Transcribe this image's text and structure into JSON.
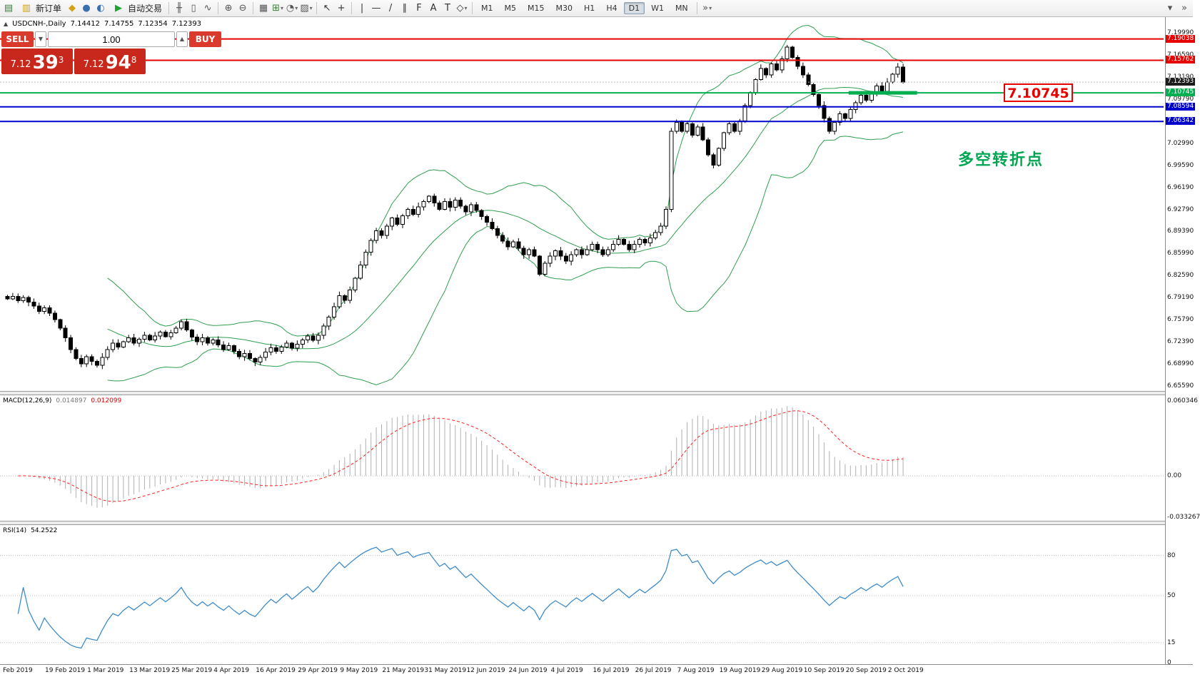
{
  "colors": {
    "bull": "#ffffff",
    "bear": "#000000",
    "outline": "#000000",
    "bollinger": "#2f9e4f",
    "macd_hist": "#b0b0b0",
    "macd_signal": "#ff2020",
    "rsi_line": "#3f8cc9",
    "red_level": "#e60000",
    "green_level": "#00b050",
    "blue_level": "#0000cc",
    "current_tag": "#1c1c1c",
    "sell_button": "#d93a2b",
    "price_panel": "#c8271c",
    "annotation": "#00a651",
    "callout": "#e60000"
  },
  "toolbar": {
    "items": [
      {
        "type": "icon",
        "name": "new-chart-icon",
        "glyph": "▤",
        "color": "#3e7d3e"
      },
      {
        "type": "button",
        "name": "new-order-button",
        "glyph": "▥",
        "glyph_color": "#c9a227",
        "label": "新订单"
      },
      {
        "type": "icon",
        "name": "profiles-icon",
        "glyph": "◆",
        "color": "#d4a017"
      },
      {
        "type": "icon",
        "name": "market-watch-icon",
        "glyph": "●",
        "color": "#3a6fb0"
      },
      {
        "type": "icon",
        "name": "navigator-icon",
        "glyph": "◐",
        "color": "#3a6fb0"
      },
      {
        "type": "button",
        "name": "autotrading-button",
        "glyph": "▶",
        "glyph_color": "#1da332",
        "label": "自动交易"
      },
      {
        "type": "sep"
      },
      {
        "type": "icon",
        "name": "bar-chart-icon",
        "glyph": "╫",
        "color": "#555555"
      },
      {
        "type": "icon",
        "name": "candlestick-icon",
        "glyph": "▯",
        "color": "#555555"
      },
      {
        "type": "icon",
        "name": "line-chart-icon",
        "glyph": "∿",
        "color": "#555555"
      },
      {
        "type": "sep"
      },
      {
        "type": "icon",
        "name": "zoom-in-icon",
        "glyph": "⊕",
        "color": "#555555"
      },
      {
        "type": "icon",
        "name": "zoom-out-icon",
        "glyph": "⊖",
        "color": "#555555"
      },
      {
        "type": "sep"
      },
      {
        "type": "icon",
        "name": "tile-windows-icon",
        "glyph": "▦",
        "color": "#555555"
      },
      {
        "type": "dropdown",
        "name": "new-chart-dropdown",
        "glyph": "⊞",
        "color": "#3e7d3e"
      },
      {
        "type": "dropdown",
        "name": "period-dropdown",
        "glyph": "◔",
        "color": "#555555"
      },
      {
        "type": "dropdown",
        "name": "template-dropdown",
        "glyph": "▨",
        "color": "#555555"
      },
      {
        "type": "sep"
      },
      {
        "type": "icon",
        "name": "cursor-icon",
        "glyph": "↖",
        "color": "#333333"
      },
      {
        "type": "icon",
        "name": "crosshair-icon",
        "glyph": "+",
        "color": "#333333"
      },
      {
        "type": "sep"
      },
      {
        "type": "icon",
        "name": "vertical-line-icon",
        "glyph": "|",
        "color": "#333333"
      },
      {
        "type": "icon",
        "name": "horizontal-line-icon",
        "glyph": "—",
        "color": "#333333"
      },
      {
        "type": "icon",
        "name": "trendline-icon",
        "glyph": "/",
        "color": "#333333"
      },
      {
        "type": "icon",
        "name": "channel-icon",
        "glyph": "∥",
        "color": "#333333"
      },
      {
        "type": "icon",
        "name": "fibonacci-icon",
        "glyph": "F",
        "color": "#333333"
      },
      {
        "type": "icon",
        "name": "text-icon",
        "glyph": "A",
        "color": "#333333"
      },
      {
        "type": "icon",
        "name": "text-label-icon",
        "glyph": "T",
        "color": "#333333"
      },
      {
        "type": "dropdown",
        "name": "arrows-dropdown",
        "glyph": "◇",
        "color": "#333333"
      },
      {
        "type": "sep"
      },
      {
        "type": "timeframes"
      },
      {
        "type": "sep"
      },
      {
        "type": "dropdown",
        "name": "chart-shift-dropdown",
        "glyph": "»",
        "color": "#555555"
      },
      {
        "type": "spacer"
      },
      {
        "type": "icon",
        "name": "toolbar-customize-icon",
        "glyph": "▾",
        "color": "#555555"
      },
      {
        "type": "icon",
        "name": "toolbar-overflow-icon",
        "glyph": "»",
        "color": "#555555"
      }
    ],
    "timeframes": [
      "M1",
      "M5",
      "M15",
      "M30",
      "H1",
      "H4",
      "D1",
      "W1",
      "MN"
    ],
    "active_timeframe": "D1"
  },
  "chart": {
    "title": {
      "symbol": "USDCNH-,Daily",
      "open": "7.14412",
      "high": "7.14755",
      "low": "7.12354",
      "close": "7.12393"
    },
    "trade": {
      "sell_label": "SELL",
      "buy_label": "BUY",
      "volume": "1.00",
      "sell_price": {
        "head": "7.12",
        "big": "39",
        "sup": "3"
      },
      "buy_price": {
        "head": "7.12",
        "big": "94",
        "sup": "8"
      }
    },
    "annotation": "多空转折点",
    "callout": "7.10745"
  },
  "panels": {
    "macd": {
      "label": "MACD(12,26,9)",
      "value_main": "0.014897",
      "value_signal": "0.012099"
    },
    "rsi": {
      "label": "RSI(14)",
      "value": "54.2522"
    }
  },
  "chart_data": {
    "type": "candlestick",
    "symbol": "USDCNH-",
    "timeframe": "Daily",
    "ohlc_display": {
      "open": 7.14412,
      "high": 7.14755,
      "low": 7.12354,
      "close": 7.12393
    },
    "y_axis": {
      "min": 6.6559,
      "max": 7.1999,
      "labels": [
        {
          "v": 7.1999,
          "label": "7.19990"
        },
        {
          "v": 7.1659,
          "label": "7.16590"
        },
        {
          "v": 7.1319,
          "label": "7.13190"
        },
        {
          "v": 7.0979,
          "label": "7.09790"
        },
        {
          "v": 7.0639,
          "label": "7.06390"
        },
        {
          "v": 7.0299,
          "label": "7.02990"
        },
        {
          "v": 6.9959,
          "label": "6.99590"
        },
        {
          "v": 6.9619,
          "label": "6.96190"
        },
        {
          "v": 6.9279,
          "label": "6.92790"
        },
        {
          "v": 6.8939,
          "label": "6.89390"
        },
        {
          "v": 6.8599,
          "label": "6.85990"
        },
        {
          "v": 6.8259,
          "label": "6.82590"
        },
        {
          "v": 6.7919,
          "label": "6.79190"
        },
        {
          "v": 6.7579,
          "label": "6.75790"
        },
        {
          "v": 6.7239,
          "label": "6.72390"
        },
        {
          "v": 6.6899,
          "label": "6.68990"
        },
        {
          "v": 6.6559,
          "label": "6.65590"
        }
      ]
    },
    "x_axis": {
      "labels": [
        {
          "idx": 0,
          "label": "Feb 2019"
        },
        {
          "idx": 8,
          "label": "19 Feb 2019"
        },
        {
          "idx": 16,
          "label": "1 Mar 2019"
        },
        {
          "idx": 24,
          "label": "13 Mar 2019"
        },
        {
          "idx": 32,
          "label": "25 Mar 2019"
        },
        {
          "idx": 40,
          "label": "4 Apr 2019"
        },
        {
          "idx": 48,
          "label": "16 Apr 2019"
        },
        {
          "idx": 56,
          "label": "29 Apr 2019"
        },
        {
          "idx": 64,
          "label": "9 May 2019"
        },
        {
          "idx": 72,
          "label": "21 May 2019"
        },
        {
          "idx": 80,
          "label": "31 May 2019"
        },
        {
          "idx": 88,
          "label": "12 Jun 2019"
        },
        {
          "idx": 96,
          "label": "24 Jun 2019"
        },
        {
          "idx": 104,
          "label": "4 Jul 2019"
        },
        {
          "idx": 112,
          "label": "16 Jul 2019"
        },
        {
          "idx": 120,
          "label": "26 Jul 2019"
        },
        {
          "idx": 128,
          "label": "7 Aug 2019"
        },
        {
          "idx": 136,
          "label": "19 Aug 2019"
        },
        {
          "idx": 144,
          "label": "29 Aug 2019"
        },
        {
          "idx": 152,
          "label": "10 Sep 2019"
        },
        {
          "idx": 160,
          "label": "20 Sep 2019"
        },
        {
          "idx": 168,
          "label": "2 Oct 2019"
        }
      ]
    },
    "closes": [
      6.79,
      6.794,
      6.787,
      6.792,
      6.785,
      6.779,
      6.771,
      6.776,
      6.768,
      6.758,
      6.745,
      6.73,
      6.712,
      6.698,
      6.69,
      6.701,
      6.694,
      6.688,
      6.7,
      6.712,
      6.722,
      6.716,
      6.724,
      6.73,
      6.722,
      6.728,
      6.734,
      6.727,
      6.733,
      6.739,
      6.732,
      6.738,
      6.745,
      6.755,
      6.742,
      6.731,
      6.724,
      6.73,
      6.722,
      6.727,
      6.719,
      6.712,
      6.718,
      6.709,
      6.701,
      6.706,
      6.698,
      6.693,
      6.7,
      6.708,
      6.715,
      6.709,
      6.716,
      6.722,
      6.714,
      6.72,
      6.727,
      6.733,
      6.726,
      6.734,
      6.748,
      6.762,
      6.778,
      6.795,
      6.788,
      6.804,
      6.822,
      6.842,
      6.862,
      6.88,
      6.895,
      6.888,
      6.902,
      6.915,
      6.905,
      6.918,
      6.928,
      6.92,
      6.932,
      6.94,
      6.948,
      6.938,
      6.928,
      6.94,
      6.931,
      6.942,
      6.933,
      6.924,
      6.935,
      6.926,
      6.917,
      6.908,
      6.898,
      6.888,
      6.879,
      6.87,
      6.878,
      6.868,
      6.858,
      6.866,
      6.856,
      6.828,
      6.845,
      6.856,
      6.864,
      6.856,
      6.848,
      6.858,
      6.866,
      6.858,
      6.866,
      6.874,
      6.866,
      6.858,
      6.866,
      6.874,
      6.882,
      6.874,
      6.866,
      6.874,
      6.882,
      6.876,
      6.884,
      6.892,
      6.902,
      6.928,
      7.048,
      7.062,
      7.048,
      7.06,
      7.042,
      7.055,
      7.035,
      7.012,
      6.996,
      7.022,
      7.046,
      7.06,
      7.048,
      7.064,
      7.088,
      7.108,
      7.128,
      7.145,
      7.135,
      7.152,
      7.143,
      7.16,
      7.178,
      7.162,
      7.148,
      7.135,
      7.12,
      7.105,
      7.088,
      7.068,
      7.048,
      7.062,
      7.075,
      7.068,
      7.082,
      7.092,
      7.104,
      7.096,
      7.108,
      7.118,
      7.11,
      7.124,
      7.136,
      7.147,
      7.124
    ],
    "bollinger": {
      "period": 20,
      "deviation": 2
    },
    "horizontal_levels": [
      {
        "price": 7.19038,
        "label": "7.19038",
        "color_key": "red_level"
      },
      {
        "price": 7.15762,
        "label": "7.15762",
        "color_key": "red_level"
      },
      {
        "price": 7.10745,
        "label": "7.10745",
        "color_key": "green_level",
        "segment": {
          "from_idx": 160,
          "to_idx": 173,
          "width": 5
        }
      },
      {
        "price": 7.08594,
        "label": "7.08594",
        "color_key": "blue_level"
      },
      {
        "price": 7.06342,
        "label": "7.06342",
        "color_key": "blue_level"
      }
    ],
    "current_price": {
      "price": 7.12393,
      "label": "7.12393"
    },
    "macd": {
      "fast": 12,
      "slow": 26,
      "signal": 9,
      "last_main": 0.014897,
      "last_signal": 0.012099,
      "scale": [
        {
          "v": 0.060346,
          "label": "0.060346"
        },
        {
          "v": 0,
          "label": "0.00"
        },
        {
          "v": -0.033267,
          "label": "-0.033267"
        }
      ]
    },
    "rsi": {
      "period": 14,
      "last": 54.2522,
      "scale": [
        {
          "v": 80,
          "label": "80"
        },
        {
          "v": 50,
          "label": "50"
        },
        {
          "v": 15,
          "label": "15"
        },
        {
          "v": 0,
          "label": "0"
        }
      ],
      "levels": [
        80,
        50,
        15
      ]
    }
  }
}
